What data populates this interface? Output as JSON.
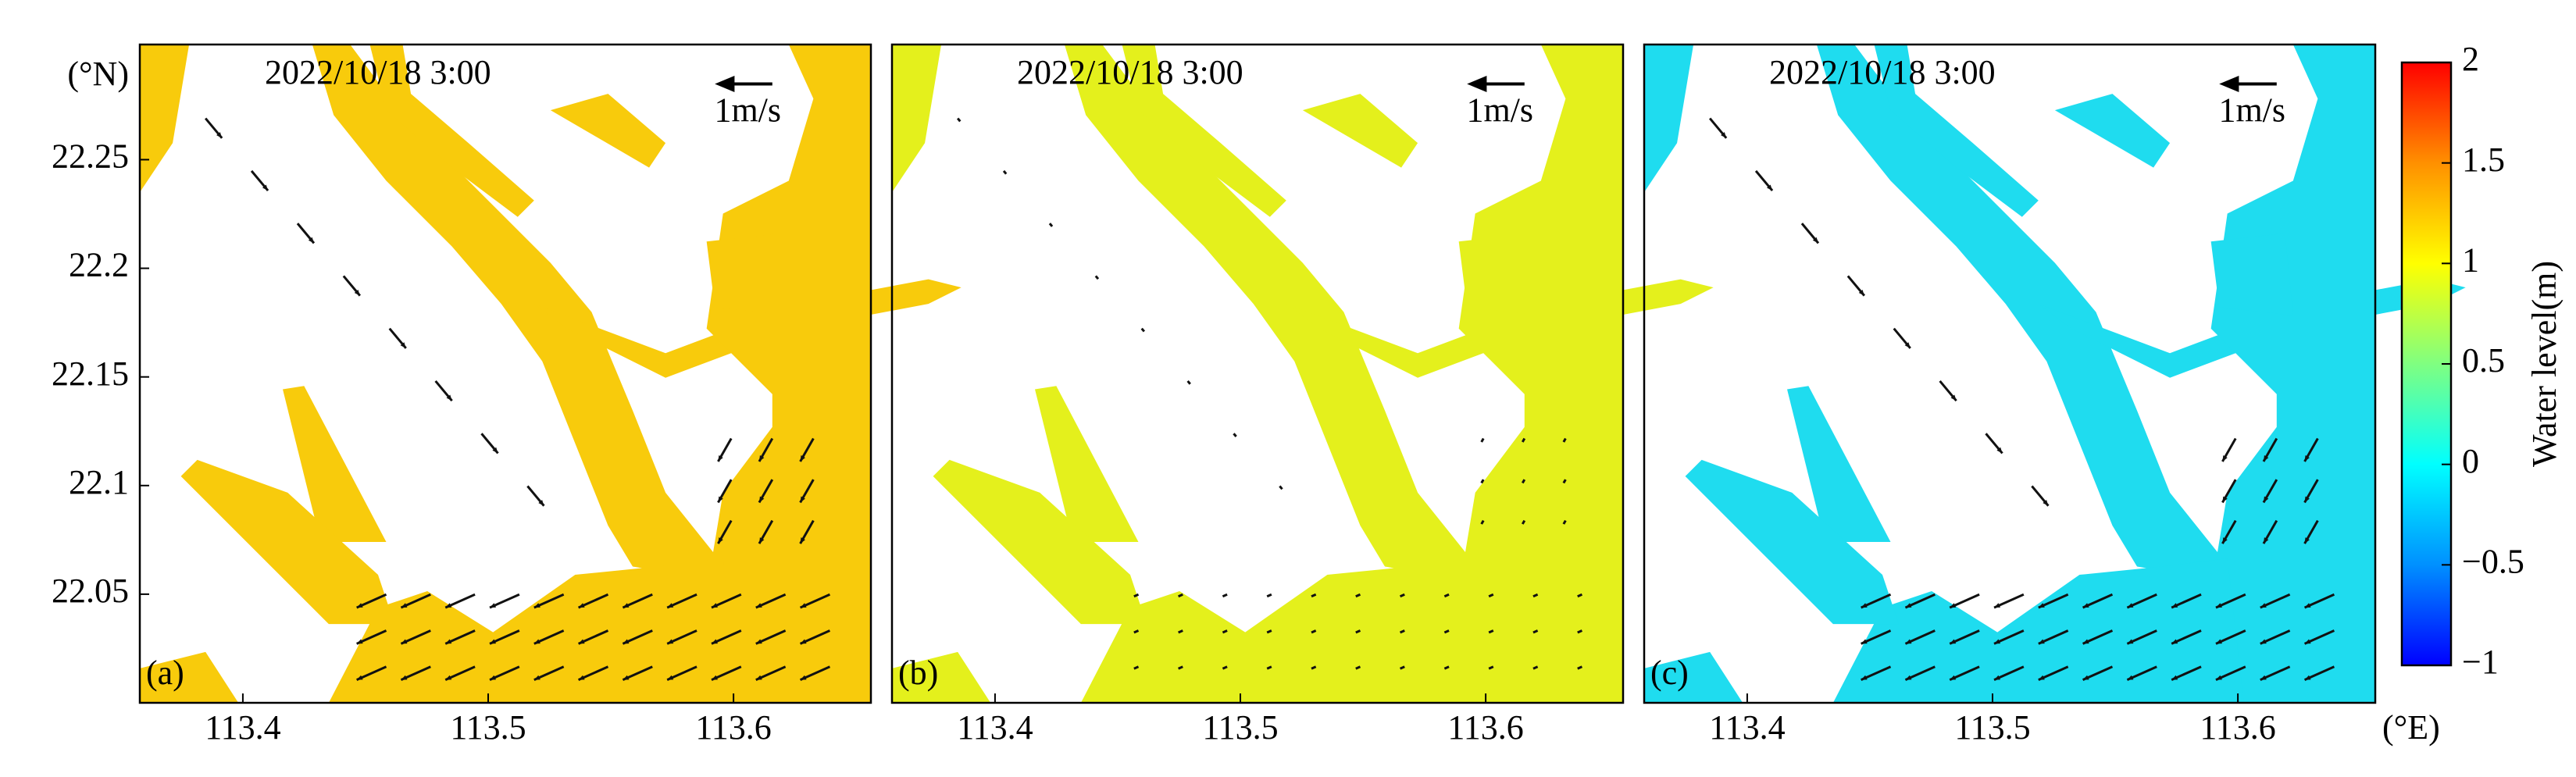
{
  "chart_data": [
    {
      "type": "map",
      "panel_label": "(a)",
      "timestamp": "2022/10/18 3:00",
      "scale_label": "1m/s",
      "color": "#f8cb0c",
      "ylabel": "(°N)",
      "xlim": [
        113.358,
        113.656
      ],
      "ylim": [
        22.0,
        22.303
      ],
      "xticks": [
        113.4,
        113.5,
        113.6
      ],
      "yticks": [
        22.05,
        22.1,
        22.15,
        22.2,
        22.25
      ]
    },
    {
      "type": "map",
      "panel_label": "(b)",
      "timestamp": "2022/10/18 3:00",
      "scale_label": "1m/s",
      "color": "#e4f01c",
      "xlim": [
        113.358,
        113.656
      ],
      "ylim": [
        22.0,
        22.303
      ],
      "xticks": [
        113.4,
        113.5,
        113.6
      ]
    },
    {
      "type": "map",
      "panel_label": "(c)",
      "timestamp": "2022/10/18 3:00",
      "scale_label": "1m/s",
      "color": "#1fdcef",
      "xlabel": "(°E)",
      "xlim": [
        113.358,
        113.656
      ],
      "ylim": [
        22.0,
        22.303
      ],
      "xticks": [
        113.4,
        113.5,
        113.6
      ]
    },
    {
      "type": "colorbar",
      "label": "Water level(m)",
      "ylim": [
        -1,
        2
      ],
      "yticks": [
        {
          "value": -1,
          "label": "−1"
        },
        {
          "value": -0.5,
          "label": "−0.5"
        },
        0,
        0.5,
        1,
        1.5,
        2
      ],
      "colors": [
        "#0000ff",
        "#0090ff",
        "#00ffff",
        "#80ff80",
        "#ffff00",
        "#ff9000",
        "#ff0000"
      ]
    }
  ]
}
